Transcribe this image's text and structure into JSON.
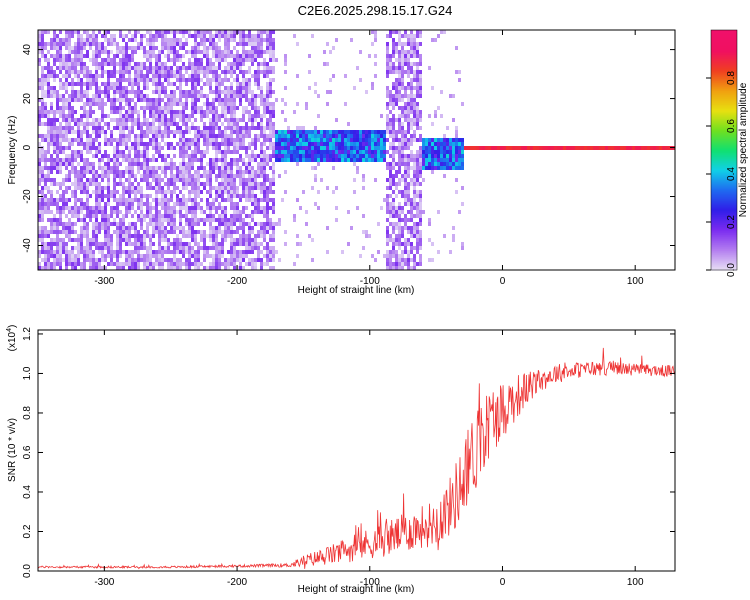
{
  "title": "C2E6.2025.298.15.17.G24",
  "chart_data": [
    {
      "type": "heatmap",
      "xlabel": "Height of straight line (km)",
      "ylabel": "Frequency (Hz)",
      "xlim": [
        -350,
        130
      ],
      "ylim": [
        -50,
        48
      ],
      "xticks": [
        -300,
        -200,
        -100,
        0,
        100
      ],
      "yticks": [
        -40,
        -20,
        0,
        20,
        40
      ],
      "colorbar": {
        "label": "Normalized spectral amplitude",
        "range": [
          0,
          1
        ],
        "ticks": [
          "0.0",
          "0.2",
          "0.4",
          "0.6",
          "0.8"
        ],
        "tick_values": [
          0.0,
          0.2,
          0.4,
          0.6,
          0.8
        ],
        "colors": [
          "#e6ddf5",
          "#b27cf0",
          "#7a2bf0",
          "#2f1ee8",
          "#1f6bf0",
          "#10d0e8",
          "#10e070",
          "#70e020",
          "#e8e010",
          "#f0a010",
          "#f04020",
          "#f01060",
          "#f0106a"
        ]
      },
      "regions": [
        {
          "x": [
            -350,
            -172
          ],
          "description_level": "noise",
          "freq_range": [
            -50,
            48
          ]
        },
        {
          "x": [
            -172,
            -90
          ],
          "signal_band_hz": [
            -5,
            8
          ],
          "level": 0.3
        },
        {
          "x": [
            -90,
            -62
          ],
          "description_level": "noise",
          "freq_range": [
            -50,
            48
          ]
        },
        {
          "x": [
            -62,
            -30
          ],
          "signal_band_hz": [
            -8,
            5
          ],
          "level": 0.3
        },
        {
          "x": [
            -30,
            130
          ],
          "signal_band_hz": [
            0,
            1.5
          ],
          "level": 0.9
        }
      ]
    },
    {
      "type": "line",
      "xlabel": "Height of straight line (km)",
      "ylabel": "SNR (10 * v/v)",
      "y_multiplier_label": "(x10",
      "y_multiplier_exp": "4",
      "y_multiplier_close": ")",
      "xlim": [
        -350,
        130
      ],
      "ylim": [
        0,
        1.22
      ],
      "xticks": [
        -300,
        -200,
        -100,
        0,
        100
      ],
      "yticks": [
        "0.0",
        "0.2",
        "0.4",
        "0.6",
        "0.8",
        "1.0",
        "1.2"
      ],
      "color": "#ee3333",
      "x": [
        -350,
        -300,
        -250,
        -200,
        -160,
        -150,
        -130,
        -110,
        -90,
        -70,
        -50,
        -40,
        -30,
        -20,
        -10,
        0,
        10,
        20,
        30,
        40,
        60,
        80,
        100,
        130
      ],
      "y": [
        0.02,
        0.02,
        0.02,
        0.025,
        0.03,
        0.05,
        0.08,
        0.12,
        0.16,
        0.2,
        0.25,
        0.32,
        0.45,
        0.62,
        0.75,
        0.82,
        0.88,
        0.93,
        0.97,
        1.0,
        1.02,
        1.03,
        1.02,
        1.01
      ],
      "noise": [
        0.005,
        0.005,
        0.005,
        0.006,
        0.01,
        0.03,
        0.05,
        0.07,
        0.09,
        0.1,
        0.12,
        0.15,
        0.2,
        0.22,
        0.18,
        0.15,
        0.12,
        0.08,
        0.06,
        0.05,
        0.04,
        0.04,
        0.03,
        0.03
      ]
    }
  ]
}
